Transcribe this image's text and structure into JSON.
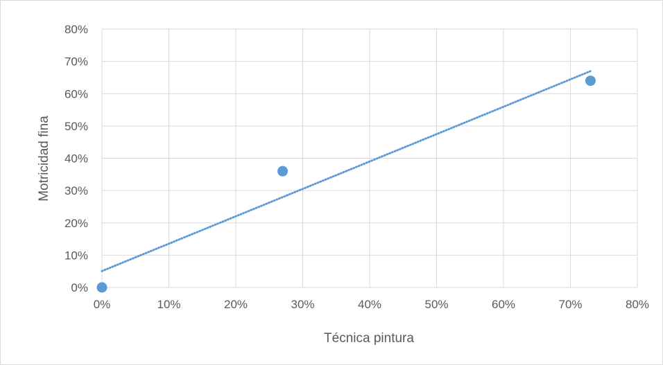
{
  "chart_data": {
    "type": "scatter",
    "title": "",
    "xlabel": "Técnica pintura",
    "ylabel": "Motricidad fina",
    "xlim": [
      0,
      0.8
    ],
    "ylim": [
      0,
      0.8
    ],
    "x_ticks": [
      "0%",
      "10%",
      "20%",
      "30%",
      "40%",
      "50%",
      "60%",
      "70%",
      "80%"
    ],
    "y_ticks": [
      "0%",
      "10%",
      "20%",
      "30%",
      "40%",
      "50%",
      "60%",
      "70%",
      "80%"
    ],
    "grid": true,
    "legend": "none",
    "series": [
      {
        "points": [
          {
            "x": 0.0,
            "y": 0.0
          },
          {
            "x": 0.27,
            "y": 0.36
          },
          {
            "x": 0.73,
            "y": 0.64
          }
        ],
        "color": "#5b9bd5"
      }
    ],
    "trendline": {
      "type": "linear",
      "style": "dotted",
      "color": "#5b9bd5",
      "x_range": [
        0,
        0.73
      ]
    }
  }
}
